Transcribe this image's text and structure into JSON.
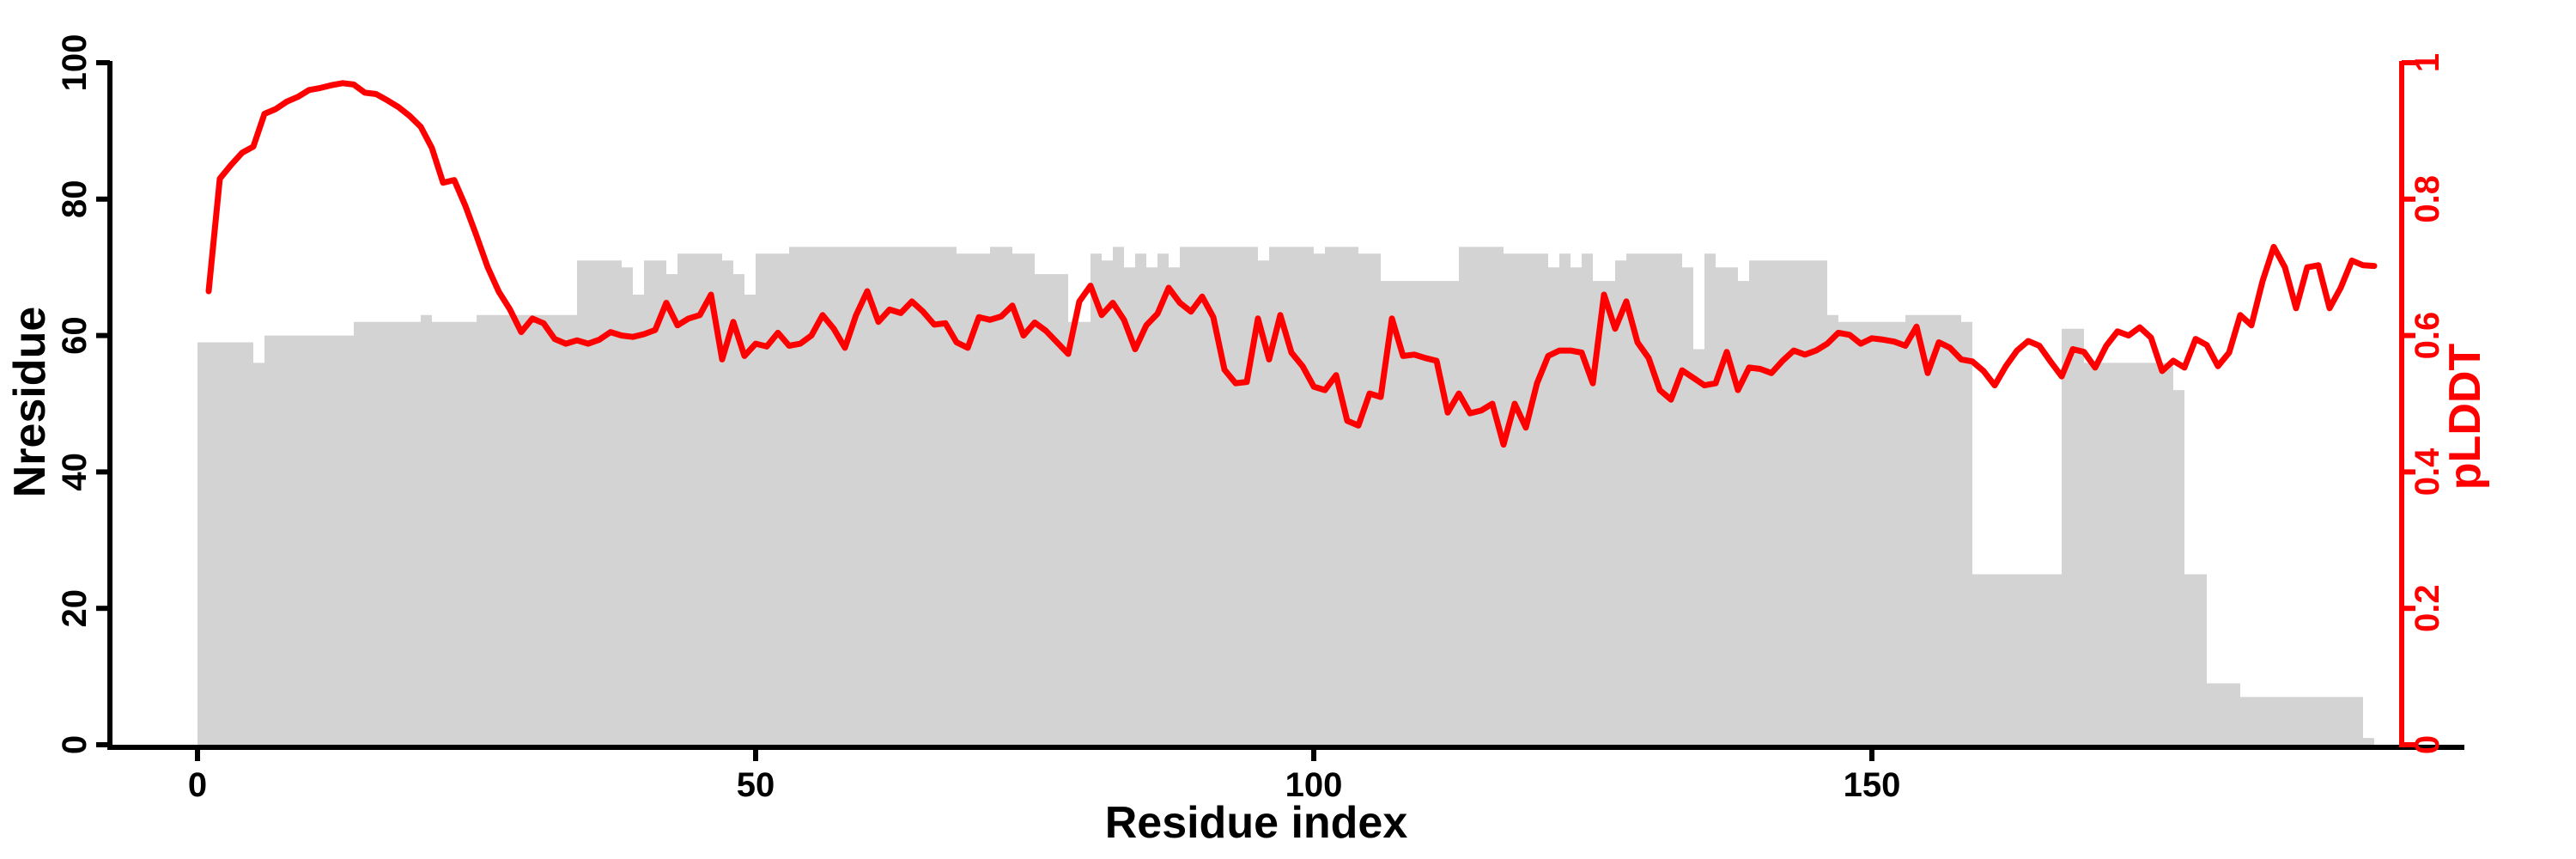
{
  "figure": {
    "background": "#ffffff",
    "axis_color": "#000000",
    "accent_color": "#ff0000",
    "bar_color": "#d3d3d3"
  },
  "chart_data": {
    "type": "bar",
    "title": "",
    "xlabel": "Residue index",
    "ylabel": "Nresidue",
    "ylabel_right": "pLDDT",
    "grid": false,
    "legend_position": "none",
    "xlim": [
      -8,
      203
    ],
    "ylim_left": [
      0,
      100
    ],
    "ylim_right": [
      0,
      1
    ],
    "x_tick_values": [
      0,
      50,
      100,
      150
    ],
    "x_tick_labels": [
      "0",
      "50",
      "100",
      "150"
    ],
    "y_left_tick_values": [
      0,
      20,
      40,
      60,
      80,
      100
    ],
    "y_left_tick_labels": [
      "0",
      "20",
      "40",
      "60",
      "80",
      "100"
    ],
    "y_right_tick_values": [
      0,
      0.2,
      0.4,
      0.6,
      0.8,
      1
    ],
    "y_right_tick_labels": [
      "0",
      "0.2",
      "0.4",
      "0.6",
      "0.8",
      "1"
    ],
    "series": [
      {
        "name": "Nresidue",
        "type": "bar",
        "axis": "left",
        "color": "#d3d3d3",
        "x_start": 0,
        "x_step": 1,
        "values": [
          59,
          59,
          59,
          59,
          59,
          56,
          60,
          60,
          60,
          60,
          60,
          60,
          60,
          60,
          62,
          62,
          62,
          62,
          62,
          62,
          63,
          62,
          62,
          62,
          62,
          63,
          63,
          63,
          63,
          63,
          63,
          63,
          63,
          63,
          71,
          71,
          71,
          71,
          70,
          66,
          71,
          71,
          69,
          72,
          72,
          72,
          72,
          71,
          69,
          66,
          72,
          72,
          72,
          73,
          73,
          73,
          73,
          73,
          73,
          73,
          73,
          73,
          73,
          73,
          73,
          73,
          73,
          73,
          72,
          72,
          72,
          73,
          73,
          72,
          72,
          69,
          69,
          69,
          62,
          62,
          72,
          71,
          73,
          70,
          72,
          70,
          72,
          70,
          73,
          73,
          73,
          73,
          73,
          73,
          73,
          71,
          73,
          73,
          73,
          73,
          72,
          73,
          73,
          73,
          72,
          72,
          68,
          68,
          68,
          68,
          68,
          68,
          68,
          73,
          73,
          73,
          73,
          72,
          72,
          72,
          72,
          70,
          72,
          70,
          72,
          68,
          68,
          71,
          72,
          72,
          72,
          72,
          72,
          70,
          58,
          72,
          70,
          70,
          68,
          71,
          71,
          71,
          71,
          71,
          71,
          71,
          63,
          62,
          62,
          62,
          62,
          62,
          62,
          63,
          63,
          63,
          63,
          63,
          62,
          25,
          25,
          25,
          25,
          25,
          25,
          25,
          25,
          61,
          61,
          56,
          56,
          56,
          56,
          56,
          56,
          56,
          56,
          52,
          25,
          25,
          9,
          9,
          9,
          7,
          7,
          7,
          7,
          7,
          7,
          7,
          7,
          7,
          7,
          7,
          1
        ]
      },
      {
        "name": "pLDDT",
        "type": "line",
        "axis": "right",
        "color": "#ff0000",
        "x_start": 1,
        "x_step": 1,
        "values": [
          0.665,
          0.83,
          0.85,
          0.868,
          0.877,
          0.925,
          0.932,
          0.943,
          0.95,
          0.96,
          0.963,
          0.967,
          0.97,
          0.968,
          0.956,
          0.954,
          0.945,
          0.935,
          0.922,
          0.906,
          0.875,
          0.824,
          0.828,
          0.79,
          0.746,
          0.7,
          0.664,
          0.638,
          0.605,
          0.625,
          0.618,
          0.595,
          0.588,
          0.593,
          0.588,
          0.594,
          0.605,
          0.6,
          0.598,
          0.602,
          0.608,
          0.648,
          0.615,
          0.625,
          0.63,
          0.66,
          0.565,
          0.62,
          0.57,
          0.588,
          0.584,
          0.604,
          0.585,
          0.588,
          0.6,
          0.63,
          0.61,
          0.582,
          0.63,
          0.665,
          0.62,
          0.638,
          0.633,
          0.65,
          0.635,
          0.616,
          0.618,
          0.59,
          0.582,
          0.627,
          0.623,
          0.628,
          0.644,
          0.6,
          0.619,
          0.607,
          0.59,
          0.573,
          0.65,
          0.673,
          0.63,
          0.648,
          0.623,
          0.58,
          0.615,
          0.632,
          0.67,
          0.648,
          0.635,
          0.657,
          0.627,
          0.55,
          0.53,
          0.532,
          0.625,
          0.565,
          0.63,
          0.575,
          0.555,
          0.525,
          0.52,
          0.542,
          0.475,
          0.468,
          0.515,
          0.51,
          0.625,
          0.57,
          0.572,
          0.567,
          0.563,
          0.487,
          0.515,
          0.486,
          0.49,
          0.5,
          0.44,
          0.5,
          0.465,
          0.53,
          0.57,
          0.578,
          0.578,
          0.575,
          0.53,
          0.66,
          0.61,
          0.65,
          0.59,
          0.567,
          0.52,
          0.506,
          0.549,
          0.538,
          0.527,
          0.53,
          0.576,
          0.52,
          0.553,
          0.551,
          0.545,
          0.563,
          0.578,
          0.572,
          0.578,
          0.588,
          0.604,
          0.601,
          0.588,
          0.596,
          0.594,
          0.591,
          0.585,
          0.613,
          0.545,
          0.59,
          0.582,
          0.565,
          0.562,
          0.548,
          0.527,
          0.555,
          0.578,
          0.592,
          0.585,
          0.562,
          0.54,
          0.58,
          0.576,
          0.553,
          0.585,
          0.606,
          0.6,
          0.612,
          0.597,
          0.548,
          0.563,
          0.553,
          0.595,
          0.586,
          0.555,
          0.575,
          0.63,
          0.615,
          0.68,
          0.73,
          0.7,
          0.64,
          0.7,
          0.703,
          0.64,
          0.67,
          0.71,
          0.703,
          0.702
        ]
      }
    ]
  }
}
